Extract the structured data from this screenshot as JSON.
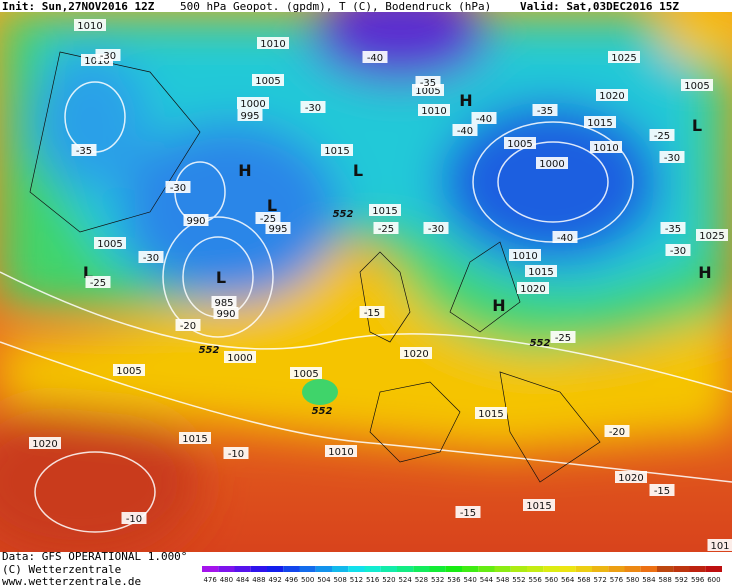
{
  "header": {
    "init": "Init: Sun,27NOV2016 12Z",
    "field": "500 hPa Geopot. (gpdm), T (C), Bodendruck (hPa)",
    "valid": "Valid: Sat,03DEC2016 15Z"
  },
  "footer": {
    "data": "Data: GFS OPERATIONAL 1.000°",
    "copyright": "(C) Wetterzentrale",
    "url": "www.wetterzentrale.de"
  },
  "colorbar": {
    "ticks": [
      476,
      480,
      484,
      488,
      492,
      496,
      500,
      504,
      508,
      512,
      516,
      520,
      524,
      528,
      532,
      536,
      540,
      544,
      548,
      552,
      556,
      560,
      564,
      568,
      572,
      576,
      580,
      584,
      588,
      592,
      596,
      600
    ]
  },
  "map": {
    "labels": [
      "1010",
      "1010",
      "-30",
      "1010",
      "1005",
      "1000",
      "995",
      "-30",
      "1015",
      "H",
      "L",
      "-30",
      "990",
      "L",
      "-25",
      "995",
      "552",
      "1015",
      "-25",
      "-30",
      "1005",
      "-30",
      "L",
      "-25",
      "L",
      "985",
      "990",
      "-20",
      "-15",
      "552",
      "1000",
      "1020",
      "1005",
      "1005",
      "552",
      "1015",
      "1015",
      "-10",
      "1010",
      "1020",
      "-10",
      "-15",
      "1015",
      "1020",
      "-15",
      "-20",
      "1025",
      "1020",
      "1005",
      "L",
      "-25",
      "-30",
      "1015",
      "1010",
      "H",
      "1005",
      "-40",
      "-35",
      "1010",
      "-40",
      "-40",
      "-35",
      "1005",
      "1000",
      "-40",
      "1010",
      "1015",
      "1020",
      "H",
      "-35",
      "-30",
      "1025",
      "H",
      "-25",
      "552",
      "101",
      "-35"
    ]
  }
}
